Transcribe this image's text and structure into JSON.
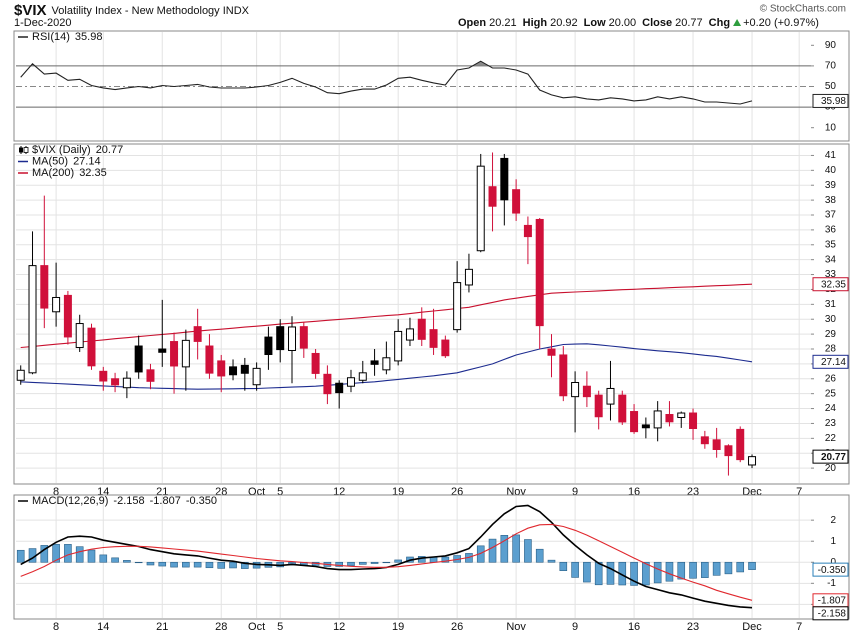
{
  "header": {
    "symbol": "$VIX",
    "name": "Volatility Index - New Methodology INDX",
    "date": "1-Dec-2020",
    "credit": "© StockCharts.com",
    "quote": [
      {
        "label": "Open",
        "value": "20.21"
      },
      {
        "label": "High",
        "value": "20.92"
      },
      {
        "label": "Low",
        "value": "20.00"
      },
      {
        "label": "Close",
        "value": "20.77"
      },
      {
        "label": "Chg",
        "value": "+0.20 (+0.97%)",
        "direction": "up"
      }
    ]
  },
  "chart_data": [
    {
      "type": "line",
      "series": [
        {
          "name": "RSI(14)",
          "color": "#222222",
          "values": [
            59,
            72,
            62,
            63,
            56,
            57,
            51,
            48.6,
            47,
            48.6,
            50,
            48.6,
            51,
            50,
            51,
            52,
            49.5,
            48.5,
            48.5,
            48.5,
            49.5,
            51,
            54,
            58,
            53,
            49.5,
            44,
            43,
            45.5,
            47.5,
            47.5,
            51.5,
            58,
            59,
            56,
            53.5,
            51.5,
            66,
            68,
            74.6,
            68,
            68,
            66,
            62,
            46.6,
            41.8,
            39,
            40,
            38,
            37,
            39,
            38,
            36,
            37,
            40,
            38,
            40,
            38,
            35,
            35,
            34,
            33,
            35.98
          ]
        }
      ],
      "ylim": [
        0,
        100
      ],
      "yticks": [
        10,
        30,
        50,
        70,
        90
      ],
      "overbought": 70,
      "oversold": 30,
      "midline": 50,
      "fill_color": "#8a8a8a",
      "grid": false
    },
    {
      "type": "candlestick",
      "name": "$VIX (Daily)",
      "open": [
        25.9,
        26.4,
        33.6,
        30.5,
        31.6,
        28.1,
        29.4,
        26.5,
        26.0,
        25.4,
        28.2,
        26.6,
        28.0,
        28.5,
        26.8,
        29.5,
        28.2,
        27.2,
        26.8,
        26.9,
        25.6,
        28.8,
        29.5,
        27.9,
        29.5,
        27.7,
        26.3,
        25.7,
        25.5,
        25.9,
        27.2,
        26.6,
        27.2,
        28.6,
        30.0,
        29.3,
        28.6,
        29.3,
        32.3,
        34.6,
        38.9,
        40.8,
        38.7,
        36.3,
        36.7,
        28.0,
        27.6,
        24.8,
        25.5,
        24.9,
        24.3,
        24.9,
        23.8,
        22.9,
        22.7,
        23.6,
        23.4,
        23.7,
        22.1,
        21.9,
        21.5,
        22.6,
        20.21
      ],
      "high": [
        26.9,
        35.9,
        38.3,
        33.8,
        31.9,
        30.3,
        29.7,
        26.8,
        26.4,
        26.5,
        28.9,
        27.0,
        31.3,
        29.1,
        29.3,
        30.7,
        29.0,
        27.6,
        27.3,
        27.4,
        27.1,
        29.5,
        30.0,
        30.2,
        29.8,
        28.0,
        26.9,
        25.9,
        26.6,
        27.2,
        28.0,
        28.5,
        30.0,
        30.1,
        30.8,
        30.7,
        28.9,
        33.9,
        34.4,
        41.1,
        41.2,
        41.1,
        39.4,
        36.9,
        36.8,
        29.0,
        28.2,
        26.5,
        26.5,
        25.2,
        27.2,
        25.2,
        24.3,
        23.4,
        24.5,
        24.5,
        23.8,
        24.0,
        22.5,
        22.7,
        21.6,
        22.8,
        20.92
      ],
      "low": [
        25.6,
        26.3,
        29.4,
        29.5,
        28.3,
        27.8,
        26.6,
        25.2,
        25.1,
        24.7,
        26.0,
        25.3,
        26.8,
        25.0,
        25.2,
        27.3,
        26.0,
        25.1,
        25.9,
        25.2,
        25.2,
        26.6,
        27.1,
        25.7,
        27.4,
        26.0,
        24.3,
        24.0,
        25.1,
        25.7,
        26.2,
        26.3,
        26.9,
        28.2,
        28.2,
        27.6,
        27.4,
        29.1,
        31.8,
        34.5,
        35.9,
        36.3,
        36.6,
        33.7,
        28.0,
        26.1,
        24.5,
        22.4,
        24.1,
        22.6,
        23.2,
        22.9,
        22.3,
        22.0,
        21.8,
        22.8,
        22.7,
        21.9,
        21.3,
        20.7,
        19.5,
        20.4,
        20.0
      ],
      "close": [
        26.57,
        33.6,
        30.75,
        31.46,
        28.81,
        29.71,
        26.87,
        25.85,
        25.59,
        26.04,
        26.46,
        25.83,
        27.78,
        26.86,
        28.58,
        28.51,
        26.38,
        26.19,
        26.27,
        26.37,
        26.7,
        27.63,
        27.96,
        29.48,
        28.06,
        26.36,
        25.0,
        25.07,
        26.07,
        26.4,
        26.97,
        27.41,
        29.18,
        29.35,
        28.65,
        28.11,
        27.55,
        32.46,
        33.35,
        40.28,
        37.59,
        38.02,
        37.13,
        35.55,
        29.57,
        27.58,
        24.86,
        25.75,
        24.8,
        23.45,
        25.35,
        23.1,
        22.45,
        22.71,
        23.84,
        23.11,
        23.7,
        22.66,
        21.64,
        21.25,
        20.84,
        20.57,
        20.77
      ],
      "up_color": "#000000",
      "down_color": "#d0103a",
      "series": [
        {
          "name": "MA(50)",
          "color": "#1c2b8f",
          "values": [
            25.8,
            25.76,
            25.72,
            25.68,
            25.64,
            25.6,
            25.56,
            25.52,
            25.48,
            25.44,
            25.4,
            25.38,
            25.36,
            25.34,
            25.32,
            25.3,
            25.31,
            25.32,
            25.33,
            25.34,
            25.35,
            25.38,
            25.41,
            25.44,
            25.47,
            25.5,
            25.56,
            25.62,
            25.68,
            25.74,
            25.8,
            25.88,
            25.96,
            26.04,
            26.12,
            26.2,
            26.3,
            26.4,
            26.6,
            26.8,
            27.0,
            27.3,
            27.6,
            27.8,
            28.0,
            28.15,
            28.3,
            28.33,
            28.35,
            28.28,
            28.2,
            28.12,
            28.03,
            27.95,
            27.88,
            27.82,
            27.75,
            27.67,
            27.58,
            27.5,
            27.38,
            27.26,
            27.14
          ]
        },
        {
          "name": "MA(200)",
          "color": "#c8102e",
          "values": [
            28.1,
            28.17,
            28.25,
            28.32,
            28.39,
            28.47,
            28.54,
            28.61,
            28.69,
            28.76,
            28.83,
            28.91,
            28.98,
            29.05,
            29.13,
            29.2,
            29.27,
            29.33,
            29.4,
            29.47,
            29.53,
            29.6,
            29.67,
            29.73,
            29.8,
            29.86,
            29.93,
            29.99,
            30.05,
            30.11,
            30.18,
            30.24,
            30.3,
            30.38,
            30.47,
            30.55,
            30.63,
            30.72,
            30.8,
            30.97,
            31.13,
            31.3,
            31.41,
            31.53,
            31.64,
            31.75,
            31.79,
            31.83,
            31.86,
            31.9,
            31.94,
            31.98,
            32.01,
            32.05,
            32.08,
            32.12,
            32.15,
            32.18,
            32.22,
            32.25,
            32.28,
            32.32,
            32.35
          ]
        }
      ],
      "ylim": [
        19,
        41.5
      ],
      "yticks": [
        20,
        21,
        22,
        23,
        24,
        25,
        26,
        27,
        28,
        29,
        30,
        31,
        32,
        33,
        34,
        35,
        36,
        37,
        38,
        39,
        40,
        41
      ],
      "xlim": [
        -0.4,
        67
      ],
      "xticks": [
        {
          "value": 3,
          "label": "8"
        },
        {
          "value": 7,
          "label": "14"
        },
        {
          "value": 12,
          "label": "21"
        },
        {
          "value": 17,
          "label": "28"
        },
        {
          "value": 20,
          "label": "Oct"
        },
        {
          "value": 22,
          "label": "5"
        },
        {
          "value": 27,
          "label": "12"
        },
        {
          "value": 32,
          "label": "19"
        },
        {
          "value": 37,
          "label": "26"
        },
        {
          "value": 42,
          "label": "Nov"
        },
        {
          "value": 47,
          "label": "9"
        },
        {
          "value": 52,
          "label": "16"
        },
        {
          "value": 57,
          "label": "23"
        },
        {
          "value": 62,
          "label": "Dec"
        },
        {
          "value": 66,
          "label": "7"
        }
      ],
      "grid": true
    },
    {
      "type": "line",
      "series": [
        {
          "name": "MACD(12,26,9)",
          "color": "#000000",
          "values": [
            -0.1,
            0.2,
            0.6,
            0.95,
            1.2,
            1.24,
            1.2,
            1.05,
            0.95,
            0.85,
            0.75,
            0.6,
            0.5,
            0.4,
            0.35,
            0.3,
            0.2,
            0.1,
            0.05,
            -0.05,
            -0.1,
            -0.12,
            -0.15,
            -0.1,
            -0.15,
            -0.2,
            -0.3,
            -0.35,
            -0.35,
            -0.32,
            -0.3,
            -0.25,
            -0.1,
            0.1,
            0.2,
            0.25,
            0.3,
            0.45,
            0.65,
            1.2,
            1.8,
            2.3,
            2.65,
            2.7,
            2.4,
            1.9,
            1.3,
            0.8,
            0.35,
            -0.05,
            -0.3,
            -0.6,
            -0.9,
            -1.15,
            -1.3,
            -1.45,
            -1.55,
            -1.7,
            -1.85,
            -1.95,
            -2.05,
            -2.12,
            -2.158
          ]
        },
        {
          "color": "#e0282e",
          "values": [
            -0.67,
            -0.45,
            -0.2,
            0.1,
            0.35,
            0.5,
            0.62,
            0.7,
            0.74,
            0.76,
            0.76,
            0.73,
            0.68,
            0.63,
            0.58,
            0.53,
            0.46,
            0.39,
            0.32,
            0.25,
            0.18,
            0.12,
            0.07,
            0.03,
            -0.01,
            -0.05,
            -0.1,
            -0.15,
            -0.19,
            -0.22,
            -0.24,
            -0.24,
            -0.21,
            -0.15,
            -0.08,
            -0.01,
            0.05,
            0.13,
            0.23,
            0.42,
            0.7,
            1.02,
            1.35,
            1.62,
            1.78,
            1.8,
            1.7,
            1.52,
            1.29,
            1.02,
            0.75,
            0.48,
            0.2,
            -0.07,
            -0.32,
            -0.55,
            -0.75,
            -0.94,
            -1.12,
            -1.33,
            -1.5,
            -1.66,
            -1.807
          ]
        },
        {
          "color": "#5b9fcf",
          "mark": "bar",
          "values": [
            0.57,
            0.65,
            0.8,
            0.85,
            0.85,
            0.74,
            0.58,
            0.35,
            0.21,
            0.09,
            -0.01,
            -0.13,
            -0.18,
            -0.23,
            -0.23,
            -0.23,
            -0.26,
            -0.29,
            -0.27,
            -0.3,
            -0.28,
            -0.24,
            -0.22,
            -0.13,
            -0.14,
            -0.15,
            -0.2,
            -0.2,
            -0.16,
            -0.1,
            -0.06,
            -0.01,
            0.11,
            0.25,
            0.28,
            0.26,
            0.25,
            0.32,
            0.42,
            0.78,
            1.1,
            1.28,
            1.3,
            1.08,
            0.62,
            0.1,
            -0.4,
            -0.72,
            -0.94,
            -1.07,
            -1.05,
            -1.08,
            -1.1,
            -1.08,
            -0.98,
            -0.9,
            -0.8,
            -0.76,
            -0.73,
            -0.62,
            -0.55,
            -0.46,
            -0.35
          ],
          "value_labels": [
            null,
            null,
            null,
            null,
            null,
            null,
            null,
            null,
            null,
            null,
            null,
            null,
            null,
            null,
            null,
            null,
            null,
            null,
            null,
            null,
            null,
            null,
            null,
            null,
            null,
            null,
            null,
            null,
            null,
            null,
            null,
            null,
            null,
            null,
            null,
            null,
            null,
            null,
            null,
            null,
            null,
            null,
            null,
            null,
            null,
            null,
            null,
            null,
            null,
            null,
            null,
            null,
            null,
            null,
            null,
            null,
            null,
            null,
            null,
            null,
            null,
            null,
            "-0.350"
          ]
        }
      ],
      "ylim": [
        -2.6,
        3.1
      ],
      "yticks": [
        -2,
        -1,
        0,
        1,
        2
      ],
      "xlim": [
        -0.4,
        67
      ],
      "xticks": [
        {
          "value": 3,
          "label": "8"
        },
        {
          "value": 7,
          "label": "14"
        },
        {
          "value": 12,
          "label": "21"
        },
        {
          "value": 17,
          "label": "28"
        },
        {
          "value": 20,
          "label": "Oct"
        },
        {
          "value": 22,
          "label": "5"
        },
        {
          "value": 27,
          "label": "12"
        },
        {
          "value": 32,
          "label": "19"
        },
        {
          "value": 37,
          "label": "26"
        },
        {
          "value": 42,
          "label": "Nov"
        },
        {
          "value": 47,
          "label": "9"
        },
        {
          "value": 52,
          "label": "16"
        },
        {
          "value": 57,
          "label": "23"
        },
        {
          "value": 62,
          "label": "Dec"
        },
        {
          "value": 66,
          "label": "7"
        }
      ],
      "grid": true
    }
  ]
}
